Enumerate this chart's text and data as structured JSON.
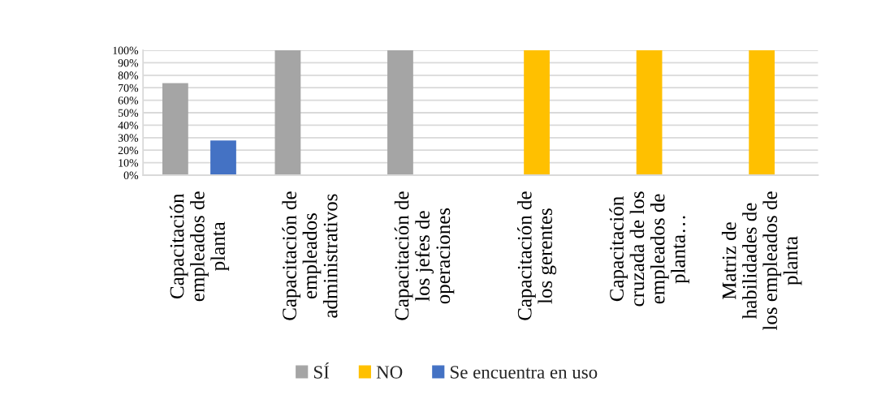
{
  "chart_data": {
    "type": "bar",
    "categories": [
      "Capacitación\nempleados de\nplanta",
      "Capacitación de\nempleados\nadministrativos",
      "Capacitación de\nlos jefes de\noperaciones",
      "Capacitación de\nlos gerentes",
      "Capacitación\ncruzada de los\nempleados de\nplanta…",
      "Matriz de\nhabilidades de\nlos empleados de\nplanta"
    ],
    "series": [
      {
        "name": "SÍ",
        "color": "#a5a5a5",
        "values": [
          73,
          100,
          100,
          0,
          0,
          0
        ]
      },
      {
        "name": "NO",
        "color": "#ffc000",
        "values": [
          0,
          0,
          0,
          100,
          100,
          100
        ]
      },
      {
        "name": "Se encuentra en uso",
        "color": "#4472c4",
        "values": [
          27,
          0,
          0,
          0,
          0,
          0
        ]
      }
    ],
    "ylim": [
      0,
      100
    ],
    "yticks": [
      {
        "value": 0,
        "label": "0%"
      },
      {
        "value": 10,
        "label": "10%"
      },
      {
        "value": 20,
        "label": "20%"
      },
      {
        "value": 30,
        "label": "30%"
      },
      {
        "value": 40,
        "label": "40%"
      },
      {
        "value": 50,
        "label": "50%"
      },
      {
        "value": 60,
        "label": "60%"
      },
      {
        "value": 70,
        "label": "70%"
      },
      {
        "value": 80,
        "label": "80%"
      },
      {
        "value": 90,
        "label": "90%"
      },
      {
        "value": 100,
        "label": "100%"
      }
    ],
    "grid": "y",
    "legend": "bottom"
  }
}
